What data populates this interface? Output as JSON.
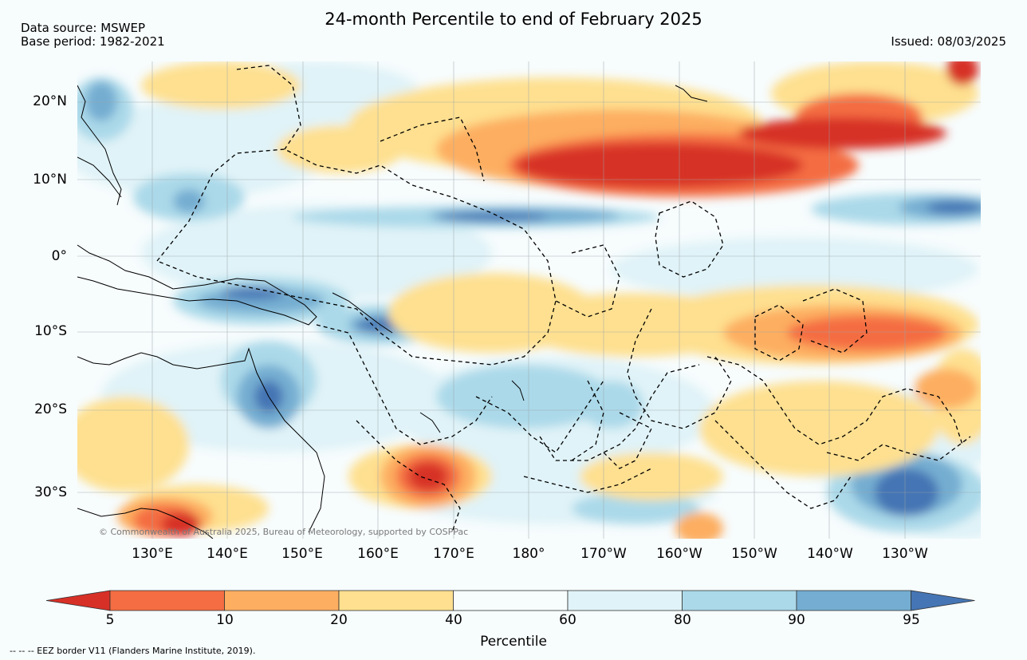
{
  "header": {
    "title": "24-month Percentile to end of February 2025",
    "data_source": "Data source: MSWEP",
    "base_period": "Base period: 1982-2021",
    "issued": "Issued: 08/03/2025"
  },
  "map": {
    "latitude_labels": [
      "20°N",
      "10°N",
      "0°",
      "10°S",
      "20°S",
      "30°S"
    ],
    "longitude_labels": [
      "130°E",
      "140°E",
      "150°E",
      "160°E",
      "170°E",
      "180°",
      "170°W",
      "160°W",
      "150°W",
      "140°W",
      "130°W"
    ],
    "copyright": "© Commonwealth of Australia 2025, Bureau of Meteorology, supported by COSPPac"
  },
  "colorbar": {
    "label": "Percentile",
    "ticks": [
      "5",
      "10",
      "20",
      "40",
      "60",
      "80",
      "90",
      "95"
    ],
    "colors": [
      "#d73027",
      "#f46d43",
      "#fdae61",
      "#fee090",
      "#f7fcfd",
      "#e0f3f8",
      "#abd9e9",
      "#74add1",
      "#4575b4"
    ]
  },
  "footnote": "--  --  -- EEZ border V11 (Flanders Marine Institute, 2019)."
}
